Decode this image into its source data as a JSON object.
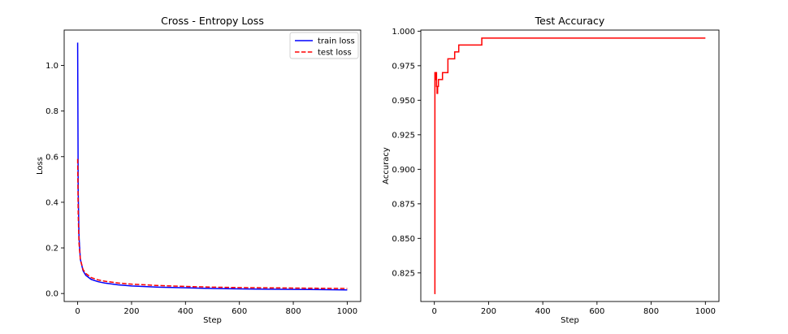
{
  "chart_data": [
    {
      "type": "line",
      "title": "Cross - Entropy Loss",
      "xlabel": "Step",
      "ylabel": "Loss",
      "xlim": [
        -50,
        1050
      ],
      "ylim": [
        -0.035,
        1.155
      ],
      "xticks": [
        0,
        200,
        400,
        600,
        800,
        1000
      ],
      "yticks": [
        0.0,
        0.2,
        0.4,
        0.6,
        0.8,
        1.0
      ],
      "xtick_labels": [
        "0",
        "200",
        "400",
        "600",
        "800",
        "1000"
      ],
      "ytick_labels": [
        "0.0",
        "0.2",
        "0.4",
        "0.6",
        "0.8",
        "1.0"
      ],
      "grid": false,
      "legend": "top-right",
      "series": [
        {
          "name": "train loss",
          "color": "#0000ff",
          "linestyle": "solid",
          "x": [
            0,
            2,
            5,
            10,
            20,
            30,
            50,
            75,
            100,
            150,
            200,
            300,
            400,
            500,
            600,
            700,
            800,
            900,
            1000
          ],
          "y": [
            1.1,
            0.45,
            0.25,
            0.15,
            0.1,
            0.08,
            0.062,
            0.052,
            0.046,
            0.038,
            0.033,
            0.028,
            0.025,
            0.022,
            0.02,
            0.019,
            0.018,
            0.017,
            0.016
          ]
        },
        {
          "name": "test loss",
          "color": "#ff0000",
          "linestyle": "dashed",
          "x": [
            0,
            2,
            5,
            10,
            20,
            30,
            50,
            75,
            100,
            150,
            200,
            300,
            400,
            500,
            600,
            700,
            800,
            900,
            1000
          ],
          "y": [
            0.59,
            0.35,
            0.22,
            0.15,
            0.105,
            0.088,
            0.07,
            0.06,
            0.054,
            0.046,
            0.041,
            0.035,
            0.031,
            0.028,
            0.026,
            0.025,
            0.024,
            0.023,
            0.022
          ]
        }
      ]
    },
    {
      "type": "line",
      "title": "Test Accuracy",
      "xlabel": "Step",
      "ylabel": "Accuracy",
      "xlim": [
        -50,
        1050
      ],
      "ylim": [
        0.8043,
        1.0008
      ],
      "xticks": [
        0,
        200,
        400,
        600,
        800,
        1000
      ],
      "yticks": [
        0.825,
        0.85,
        0.875,
        0.9,
        0.925,
        0.95,
        0.975,
        1.0
      ],
      "xtick_labels": [
        "0",
        "200",
        "400",
        "600",
        "800",
        "1000"
      ],
      "ytick_labels": [
        "0.825",
        "0.850",
        "0.875",
        "0.900",
        "0.925",
        "0.950",
        "0.975",
        "1.000"
      ],
      "grid": false,
      "series": [
        {
          "name": "",
          "color": "#ff0000",
          "linestyle": "steps",
          "x": [
            0,
            2,
            4,
            6,
            8,
            10,
            12,
            15,
            20,
            30,
            50,
            60,
            75,
            90,
            100,
            150,
            175,
            180,
            200,
            300,
            1000
          ],
          "y": [
            0.81,
            0.97,
            0.965,
            0.97,
            0.96,
            0.955,
            0.96,
            0.965,
            0.965,
            0.97,
            0.98,
            0.98,
            0.985,
            0.99,
            0.99,
            0.99,
            0.995,
            0.995,
            0.995,
            0.995,
            0.995
          ]
        }
      ]
    }
  ]
}
